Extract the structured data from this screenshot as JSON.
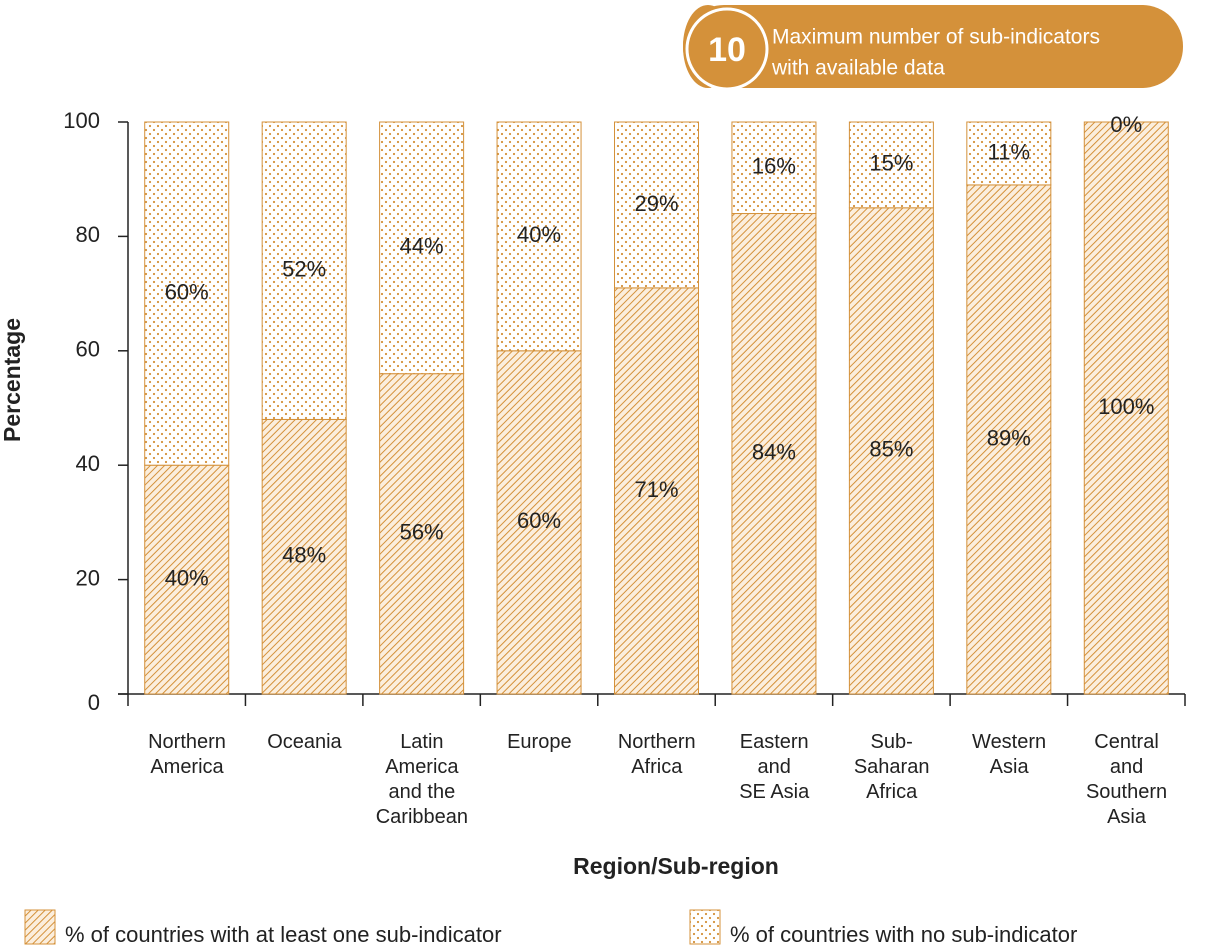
{
  "chart_data": {
    "type": "stacked_bar",
    "annotation": {
      "number": 10,
      "lines": [
        "Maximum number of sub-indicators",
        "with available data"
      ]
    },
    "x_label": "Region/Sub-region",
    "y_label": "Percentage",
    "categories": [
      "Northern\nAmerica",
      "Oceania",
      "Latin\nAmerica\nand the\nCaribbean",
      "Europe",
      "Northern\nAfrica",
      "Eastern\nand\nSE Asia",
      "Sub-\nSaharan\nAfrica",
      "Western\nAsia",
      "Central\nand\nSouthern\nAsia"
    ],
    "series": [
      {
        "name": "% of countries with at least one sub-indicator",
        "color": "#d4913a",
        "pattern": "hatch",
        "values": [
          40,
          48,
          56,
          60,
          71,
          84,
          85,
          89,
          100
        ],
        "value_labels": [
          "40%",
          "48%",
          "56%",
          "60%",
          "71%",
          "84%",
          "85%",
          "89%",
          "100%"
        ]
      },
      {
        "name": "% of countries with no sub-indicator",
        "color": "#d4913a",
        "pattern": "dots",
        "values": [
          60,
          52,
          44,
          40,
          29,
          16,
          15,
          11,
          0
        ],
        "value_labels": [
          "60%",
          "52%",
          "44%",
          "40%",
          "29%",
          "16%",
          "15%",
          "11%",
          "0%"
        ]
      }
    ],
    "ylim": [
      0,
      100
    ],
    "yticks": [
      0,
      20,
      40,
      60,
      80,
      100
    ],
    "legend": "bottom"
  }
}
